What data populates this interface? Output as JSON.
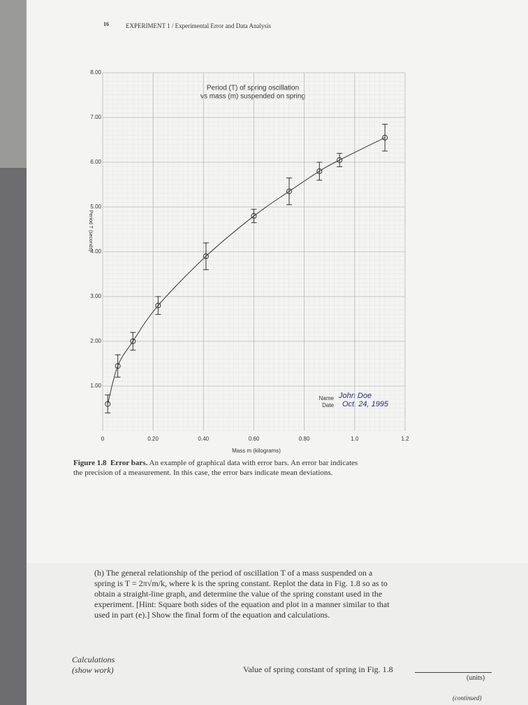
{
  "header": {
    "page_number": "16",
    "running_head": "EXPERIMENT 1 / Experimental Error and Data Analysis"
  },
  "chart_data": {
    "type": "scatter",
    "title": [
      "Period (T) of spring oscillation",
      "vs mass (m) suspended on spring"
    ],
    "x_label": "Mass m (kilograms)",
    "y_label": "Period T (seconds)",
    "x": [
      0.02,
      0.06,
      0.12,
      0.22,
      0.41,
      0.6,
      0.74,
      0.86,
      0.94,
      1.12
    ],
    "values": [
      0.6,
      1.45,
      2.0,
      2.8,
      3.9,
      4.8,
      5.35,
      5.8,
      6.05,
      6.55
    ],
    "errors": [
      0.2,
      0.25,
      0.2,
      0.2,
      0.3,
      0.15,
      0.3,
      0.2,
      0.15,
      0.3
    ],
    "color": "#333333",
    "grid": true,
    "xlim": [
      0,
      1.2
    ],
    "xticks": [
      0,
      {
        "value": 0.2,
        "label": "0.20"
      },
      {
        "value": 0.4,
        "label": "0.40"
      },
      {
        "value": 0.6,
        "label": "0.60"
      },
      {
        "value": 0.8,
        "label": "0.80"
      },
      {
        "value": 1.0,
        "label": "1.0"
      },
      1.2
    ],
    "ylim": [
      0,
      8
    ],
    "yticks": [
      {
        "value": 1,
        "label": "1.00"
      },
      {
        "value": 2,
        "label": "2.00"
      },
      {
        "value": 3,
        "label": "3.00"
      },
      {
        "value": 4,
        "label": "4.00"
      },
      {
        "value": 5,
        "label": "5.00"
      },
      {
        "value": 6,
        "label": "6.00"
      },
      {
        "value": 7,
        "label": "7.00"
      },
      {
        "value": 8,
        "label": "8.00"
      }
    ]
  },
  "signature": {
    "name_label": "Name",
    "date_label": "Date",
    "name": "John Doe",
    "date": "Oct. 24, 1995"
  },
  "caption": {
    "label": "Figure 1.8",
    "heading": "Error bars.",
    "text": "An example of graphical data with error bars. An error bar indicates the precision of a measurement. In this case, the error bars indicate mean deviations."
  },
  "question": {
    "label": "(h)",
    "text": "The general relationship of the period of oscillation T of a mass suspended on a spring is T = 2π√m/k, where k is the spring constant. Replot the data in Fig. 1.8 so as to obtain a straight-line graph, and determine the value of the spring constant used in the experiment. [Hint: Square both sides of the equation and plot in a manner similar to that used in part (e).] Show the final form of the equation and calculations."
  },
  "footer": {
    "calculations": "Calculations",
    "show_work": "(show work)",
    "value_prompt": "Value of spring constant of spring in Fig. 1.8",
    "units": "(units)",
    "continued": "(continued)"
  }
}
